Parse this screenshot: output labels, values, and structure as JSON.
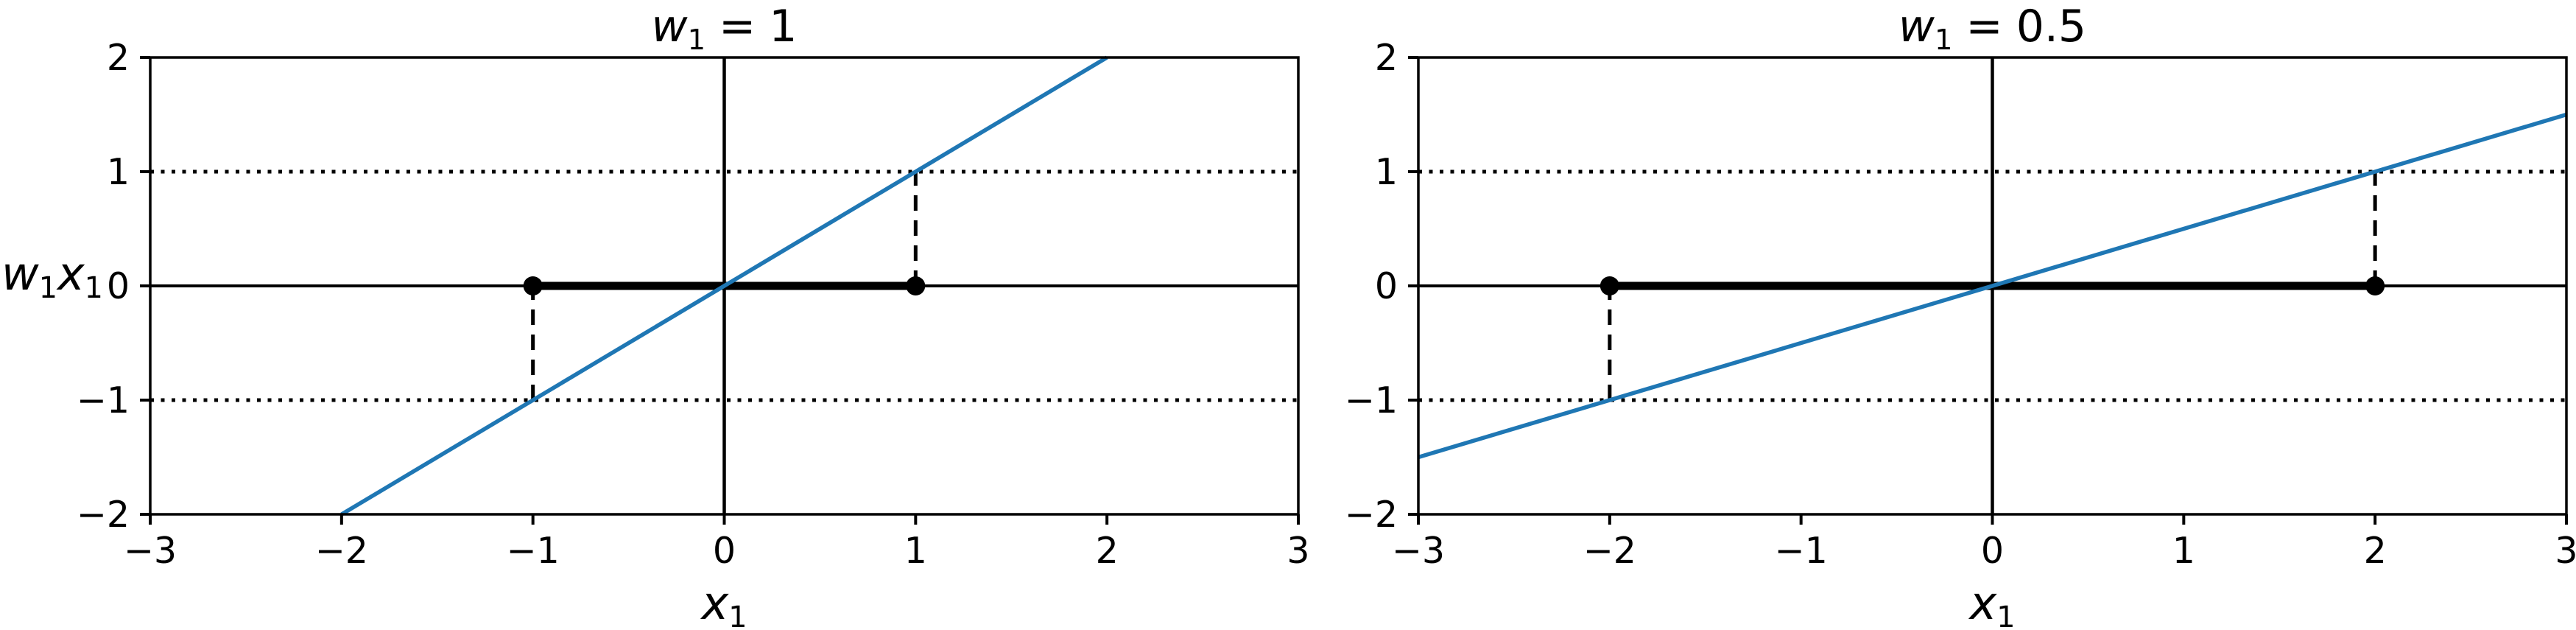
{
  "figure": {
    "background": "#ffffff",
    "axis_color": "#000000",
    "line_color": "#1f77b4"
  },
  "chart_data": [
    {
      "type": "line",
      "title": "w₁ = 1",
      "title_math": {
        "symbol": "w",
        "subscript": "1",
        "equals": "=",
        "value": "1"
      },
      "xlabel": "x₁",
      "xlabel_math": {
        "symbol": "x",
        "subscript": "1"
      },
      "ylabel": "w₁x₁",
      "ylabel_math": {
        "symbol1": "w",
        "subscript1": "1",
        "symbol2": "x",
        "subscript2": "1"
      },
      "xlim": [
        -3,
        3
      ],
      "ylim": [
        -2,
        2
      ],
      "xticks": [
        -3,
        -2,
        -1,
        0,
        1,
        2,
        3
      ],
      "yticks": [
        -2,
        -1,
        0,
        1,
        2
      ],
      "grid": false,
      "slope": 1,
      "line": {
        "name": "w1·x1",
        "x": [
          -2,
          2
        ],
        "y": [
          -2,
          2
        ],
        "color": "#1f77b4"
      },
      "zero_segment": {
        "x0": -1,
        "x1": 1,
        "y": 0
      },
      "markers": [
        {
          "x": -1,
          "y": 0
        },
        {
          "x": 1,
          "y": 0
        }
      ],
      "dashed_lines": [
        {
          "x": -1,
          "y0": -1,
          "y1": 0
        },
        {
          "x": 1,
          "y0": 0,
          "y1": 1
        }
      ],
      "dotted_hlines": [
        1,
        -1
      ],
      "x_axis_line": 0,
      "y_axis_line": 0
    },
    {
      "type": "line",
      "title": "w₁ = 0.5",
      "title_math": {
        "symbol": "w",
        "subscript": "1",
        "equals": "=",
        "value": "0.5"
      },
      "xlabel": "x₁",
      "xlabel_math": {
        "symbol": "x",
        "subscript": "1"
      },
      "xlim": [
        -3,
        3
      ],
      "ylim": [
        -2,
        2
      ],
      "xticks": [
        -3,
        -2,
        -1,
        0,
        1,
        2,
        3
      ],
      "yticks": [
        -2,
        -1,
        0,
        1,
        2
      ],
      "grid": false,
      "slope": 0.5,
      "line": {
        "name": "w1·x1",
        "x": [
          -3,
          3
        ],
        "y": [
          -1.5,
          1.5
        ],
        "color": "#1f77b4"
      },
      "zero_segment": {
        "x0": -2,
        "x1": 2,
        "y": 0
      },
      "markers": [
        {
          "x": -2,
          "y": 0
        },
        {
          "x": 2,
          "y": 0
        }
      ],
      "dashed_lines": [
        {
          "x": -2,
          "y0": -1,
          "y1": 0
        },
        {
          "x": 2,
          "y0": 0,
          "y1": 1
        }
      ],
      "dotted_hlines": [
        1,
        -1
      ],
      "x_axis_line": 0,
      "y_axis_line": 0
    }
  ]
}
